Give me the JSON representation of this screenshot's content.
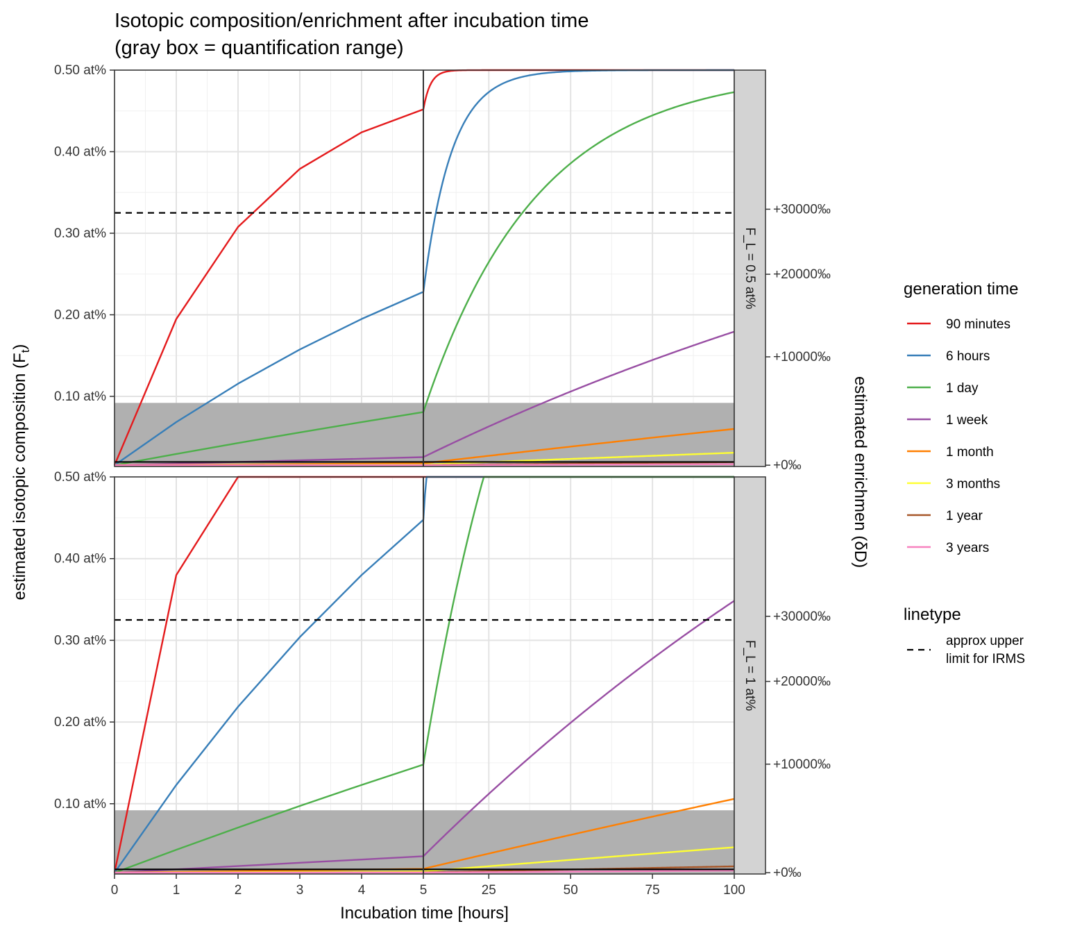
{
  "chart_data": {
    "type": "line",
    "title": [
      "Isotopic composition/enrichment after incubation time",
      "(gray box = quantification range)"
    ],
    "xlabel": "Incubation time [hours]",
    "ylabel": "estimated isotopic composition (F",
    "ylabel_sub": "t",
    "ylabel_close": ")",
    "ylabel_right": "estimated enrichmen (δD)",
    "x_scale": "piecewise: 0-5 h linear (left segment), 5-100 h linear (right segment)",
    "x_ticks": [
      {
        "value": 0,
        "label": "0"
      },
      {
        "value": 1,
        "label": "1"
      },
      {
        "value": 2,
        "label": "2"
      },
      {
        "value": 3,
        "label": "3"
      },
      {
        "value": 4,
        "label": "4"
      },
      {
        "value": 5,
        "label": "5"
      },
      {
        "value": 25,
        "label": "25"
      },
      {
        "value": 50,
        "label": "50"
      },
      {
        "value": 75,
        "label": "75"
      },
      {
        "value": 100,
        "label": "100"
      }
    ],
    "y_ticks": [
      {
        "value": 0.1,
        "label": "0.10 at%"
      },
      {
        "value": 0.2,
        "label": "0.20 at%"
      },
      {
        "value": 0.3,
        "label": "0.30 at%"
      },
      {
        "value": 0.4,
        "label": "0.40 at%"
      },
      {
        "value": 0.5,
        "label": "0.50 at%"
      }
    ],
    "ylim": [
      0.014,
      0.5
    ],
    "y_right_ticks": [
      {
        "value": 0,
        "label": "+0‰"
      },
      {
        "value": 10000,
        "label": "+10000‰"
      },
      {
        "value": 20000,
        "label": "+20000‰"
      },
      {
        "value": 30000,
        "label": "+30000‰"
      }
    ],
    "initial_F": 0.0156,
    "quantification_range": [
      0.014,
      0.092
    ],
    "black_reference_line": 0.0196,
    "irms_upper_limit": 0.325,
    "panels": [
      {
        "label": "F_L = 0.5 at%",
        "FL": 0.5
      },
      {
        "label": "F_L = 1 at%",
        "FL": 1.0
      }
    ],
    "series": [
      {
        "name": "90 minutes",
        "generation_time_h": 1.5,
        "color": "#e41a1c"
      },
      {
        "name": "6 hours",
        "generation_time_h": 6,
        "color": "#377eb8"
      },
      {
        "name": "1 day",
        "generation_time_h": 24,
        "color": "#4daf4a"
      },
      {
        "name": "1 week",
        "generation_time_h": 168,
        "color": "#984ea3"
      },
      {
        "name": "1 month",
        "generation_time_h": 720,
        "color": "#ff7f00"
      },
      {
        "name": "3 months",
        "generation_time_h": 2160,
        "color": "#ffff33"
      },
      {
        "name": "1 year",
        "generation_time_h": 8760,
        "color": "#a65628"
      },
      {
        "name": "3 years",
        "generation_time_h": 26280,
        "color": "#f781bf"
      }
    ],
    "sample_times_left": [
      0,
      1,
      2,
      3,
      4,
      5
    ],
    "legend": {
      "placement": "right",
      "color_title": "generation time",
      "linetype_title": "linetype",
      "linetype_label": [
        "approx upper",
        "limit for IRMS"
      ]
    }
  }
}
